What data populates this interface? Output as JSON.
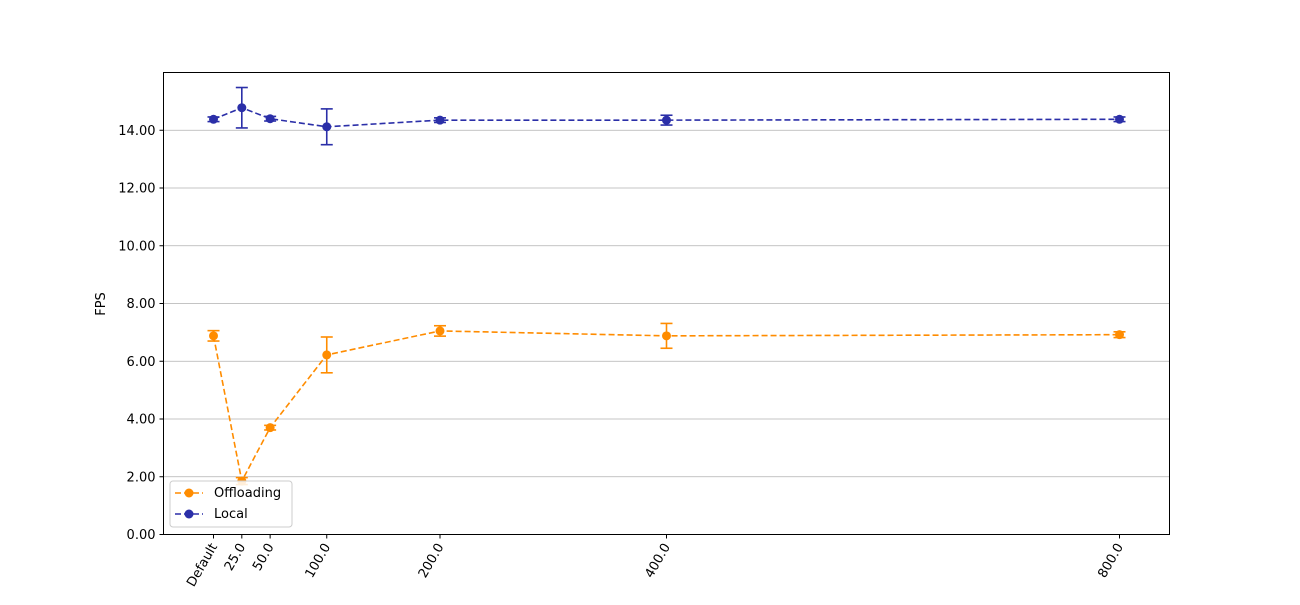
{
  "chart_data": {
    "type": "line",
    "title": "",
    "xlabel": "",
    "ylabel": "FPS",
    "categories": [
      "Default",
      "25.0",
      "50.0",
      "100.0",
      "200.0",
      "400.0",
      "800.0"
    ],
    "x": [
      0,
      25,
      50,
      100,
      200,
      400,
      800
    ],
    "ylim": [
      0,
      16
    ],
    "yticks": [
      "0.00",
      "2.00",
      "4.00",
      "6.00",
      "8.00",
      "10.00",
      "12.00",
      "14.00"
    ],
    "grid": "horizontal",
    "legend_position": "lower-left",
    "series": [
      {
        "name": "Offloading",
        "color": "#ff8c00",
        "values": [
          6.88,
          1.85,
          3.7,
          6.22,
          7.05,
          6.88,
          6.92
        ],
        "errors": [
          0.18,
          0.12,
          0.08,
          0.62,
          0.18,
          0.43,
          0.1
        ]
      },
      {
        "name": "Local",
        "color": "#2b2fa8",
        "values": [
          14.38,
          14.78,
          14.4,
          14.12,
          14.35,
          14.35,
          14.38
        ],
        "errors": [
          0.08,
          0.7,
          0.08,
          0.62,
          0.08,
          0.17,
          0.08
        ]
      }
    ]
  }
}
